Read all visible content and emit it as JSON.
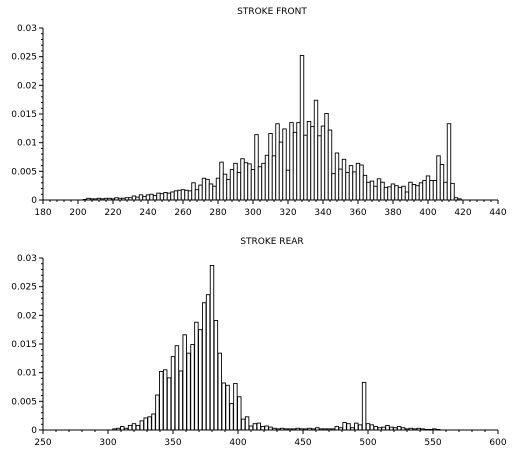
{
  "chart_data": [
    {
      "type": "bar",
      "title": "STROKE FRONT",
      "xlabel": "",
      "ylabel": "",
      "xlim": [
        180,
        440
      ],
      "ylim": [
        0,
        0.03
      ],
      "xticks": [
        180,
        200,
        220,
        240,
        260,
        280,
        300,
        320,
        340,
        360,
        380,
        400,
        420,
        440
      ],
      "yticks": [
        0,
        0.005,
        0.01,
        0.015,
        0.02,
        0.025,
        0.03
      ],
      "xtick_labels": [
        "180",
        "200",
        "220",
        "240",
        "260",
        "280",
        "300",
        "320",
        "340",
        "360",
        "380",
        "400",
        "420",
        "440"
      ],
      "ytick_labels": [
        "0",
        "0.005",
        "0.01",
        "0.015",
        "0.02",
        "0.025",
        "0.03"
      ],
      "bin_width": 2,
      "x": [
        204,
        206,
        208,
        210,
        212,
        214,
        216,
        218,
        220,
        222,
        224,
        226,
        228,
        230,
        232,
        234,
        236,
        238,
        240,
        242,
        244,
        246,
        248,
        250,
        252,
        254,
        256,
        258,
        260,
        262,
        264,
        266,
        268,
        270,
        272,
        274,
        276,
        278,
        280,
        282,
        284,
        286,
        288,
        290,
        292,
        294,
        296,
        298,
        300,
        302,
        304,
        306,
        308,
        310,
        312,
        314,
        316,
        318,
        320,
        322,
        324,
        326,
        328,
        330,
        332,
        334,
        336,
        338,
        340,
        342,
        344,
        346,
        348,
        350,
        352,
        354,
        356,
        358,
        360,
        362,
        364,
        366,
        368,
        370,
        372,
        374,
        376,
        378,
        380,
        382,
        384,
        386,
        388,
        390,
        392,
        394,
        396,
        398,
        400,
        402,
        404,
        406,
        408,
        410,
        412,
        414,
        416,
        418
      ],
      "values": [
        0.0001,
        0.0003,
        0.0002,
        0.0002,
        0.0003,
        0.0002,
        0.0003,
        0.0003,
        0.0002,
        0.0004,
        0.0003,
        0.0003,
        0.0004,
        0.0004,
        0.0007,
        0.0005,
        0.0009,
        0.0006,
        0.0009,
        0.001,
        0.0008,
        0.0012,
        0.0011,
        0.0013,
        0.0012,
        0.0014,
        0.0016,
        0.0017,
        0.0018,
        0.0017,
        0.0016,
        0.003,
        0.0018,
        0.0026,
        0.0038,
        0.0036,
        0.0028,
        0.0024,
        0.0038,
        0.0066,
        0.0045,
        0.0036,
        0.0053,
        0.0064,
        0.0048,
        0.0072,
        0.0065,
        0.0063,
        0.0053,
        0.0114,
        0.0058,
        0.0064,
        0.0078,
        0.0116,
        0.0077,
        0.0133,
        0.0101,
        0.0124,
        0.0052,
        0.0135,
        0.0118,
        0.0135,
        0.0252,
        0.0113,
        0.0137,
        0.0128,
        0.0174,
        0.0112,
        0.0129,
        0.0151,
        0.0122,
        0.0046,
        0.0082,
        0.0054,
        0.0071,
        0.0048,
        0.006,
        0.0049,
        0.0064,
        0.0061,
        0.0043,
        0.0031,
        0.0033,
        0.0024,
        0.0037,
        0.0031,
        0.0022,
        0.0023,
        0.0028,
        0.0025,
        0.0022,
        0.0024,
        0.0014,
        0.0031,
        0.0027,
        0.0025,
        0.003,
        0.0034,
        0.0042,
        0.0034,
        0.0034,
        0.0077,
        0.0062,
        0.0031,
        0.0133,
        0.0029,
        0.0004,
        0.0002
      ]
    },
    {
      "type": "bar",
      "title": "STROKE REAR",
      "xlabel": "",
      "ylabel": "",
      "xlim": [
        250,
        600
      ],
      "ylim": [
        0,
        0.03
      ],
      "xticks": [
        250,
        300,
        350,
        400,
        450,
        500,
        550,
        600
      ],
      "yticks": [
        0,
        0.005,
        0.01,
        0.015,
        0.02,
        0.025,
        0.03
      ],
      "xtick_labels": [
        "250",
        "300",
        "350",
        "400",
        "450",
        "500",
        "550",
        "600"
      ],
      "ytick_labels": [
        "0",
        "0.005",
        "0.01",
        "0.015",
        "0.02",
        "0.025",
        "0.03"
      ],
      "bin_width": 2.7,
      "x": [
        305,
        308,
        311,
        314,
        317,
        320,
        323,
        326,
        329,
        332,
        335,
        338,
        341,
        344,
        347,
        350,
        353,
        356,
        359,
        362,
        365,
        368,
        371,
        374,
        377,
        380,
        383,
        386,
        389,
        392,
        395,
        398,
        401,
        404,
        407,
        410,
        413,
        416,
        419,
        422,
        425,
        428,
        431,
        434,
        437,
        440,
        443,
        446,
        449,
        452,
        455,
        458,
        461,
        464,
        467,
        470,
        473,
        476,
        479,
        482,
        485,
        488,
        491,
        494,
        497,
        500,
        503,
        506,
        509,
        512,
        515,
        518,
        521,
        524,
        527,
        530,
        533,
        536,
        539,
        542,
        545,
        548,
        551,
        554
      ],
      "values": [
        0.0002,
        0.0003,
        0.0006,
        0.0003,
        0.0008,
        0.0011,
        0.0008,
        0.0016,
        0.0021,
        0.0023,
        0.0028,
        0.0061,
        0.0102,
        0.0105,
        0.0091,
        0.0128,
        0.0147,
        0.0103,
        0.0166,
        0.0134,
        0.0149,
        0.0188,
        0.0175,
        0.0222,
        0.0236,
        0.0287,
        0.0191,
        0.0134,
        0.0082,
        0.0078,
        0.0046,
        0.0081,
        0.0058,
        0.0019,
        0.0023,
        0.0007,
        0.0011,
        0.0012,
        0.0006,
        0.0007,
        0.0005,
        0.0003,
        0.0002,
        0.0003,
        0.0002,
        0.0002,
        0.0002,
        0.0003,
        0.0002,
        0.0002,
        0.0003,
        0.0002,
        0.0004,
        0.0002,
        0.0002,
        0.0002,
        0.0002,
        0.0006,
        0.0004,
        0.0013,
        0.0011,
        0.0004,
        0.0012,
        0.0009,
        0.0083,
        0.0011,
        0.0009,
        0.0006,
        0.0004,
        0.0005,
        0.0008,
        0.0005,
        0.0004,
        0.0006,
        0.0004,
        0.0002,
        0.0003,
        0.0002,
        0.0003,
        0.0002,
        0.0001,
        0.0001,
        0.0002,
        0.0001
      ]
    }
  ]
}
